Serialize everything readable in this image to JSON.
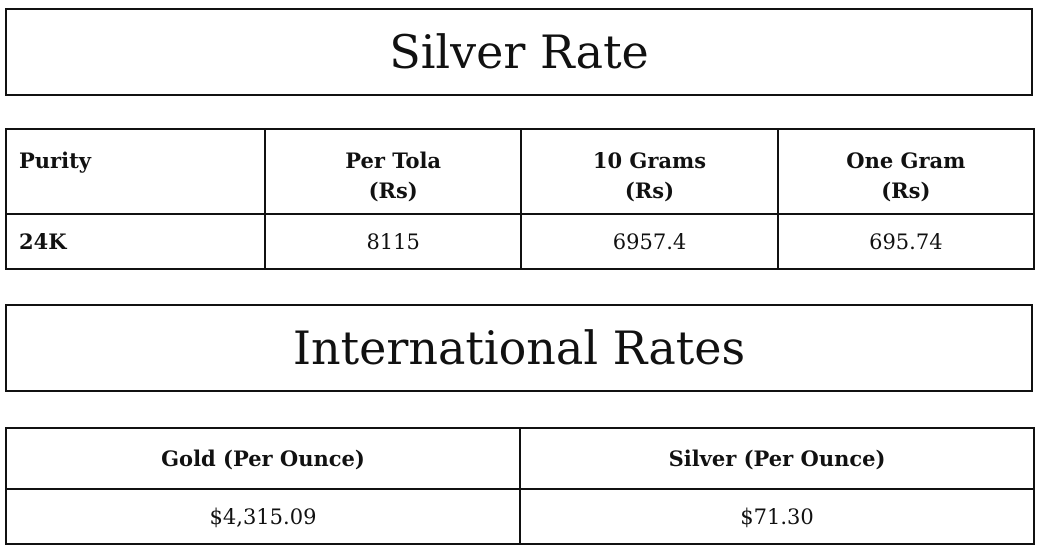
{
  "silver_title": "Silver Rate",
  "silver_table": {
    "headers": [
      [
        "Purity",
        ""
      ],
      [
        "Per Tola",
        "(Rs)"
      ],
      [
        "10 Grams",
        "(Rs)"
      ],
      [
        "One Gram",
        "(Rs)"
      ]
    ],
    "row": [
      "24K",
      "8115",
      "6957.4",
      "695.74"
    ]
  },
  "intl_title": "International Rates",
  "intl_table": {
    "headers": [
      "Gold (Per Ounce)",
      "Silver (Per Ounce)"
    ],
    "row": [
      "$4,315.09",
      "$71.30"
    ]
  }
}
